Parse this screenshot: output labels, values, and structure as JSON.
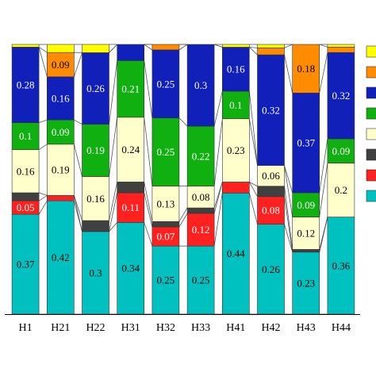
{
  "chart_data": {
    "type": "bar",
    "stacked": true,
    "normalized": true,
    "categories": [
      "H1",
      "H21",
      "H22",
      "H31",
      "H32",
      "H33",
      "H41",
      "H42",
      "H43",
      "H44"
    ],
    "ylim": [
      0,
      1
    ],
    "legend_position": "right (partially cropped)",
    "connector_lines_between_bars": true,
    "series": [
      {
        "color": "#00c0c0",
        "label_color": "#000000",
        "values": [
          0.37,
          0.42,
          0.3,
          0.34,
          0.25,
          0.25,
          0.44,
          0.26,
          0.23,
          0.36
        ],
        "labels": [
          "0.37",
          "0.42",
          "0.3",
          "0.34",
          "0.25",
          "0.25",
          "0.44",
          "0.26",
          "0.23",
          "0.36"
        ]
      },
      {
        "color": "#ff2020",
        "label_color": "#ffffff",
        "values": [
          0.05,
          0.02,
          0.0,
          0.11,
          0.07,
          0.12,
          0.04,
          0.08,
          0.0,
          0.0
        ],
        "labels": [
          "0.05",
          "",
          "",
          "0.11",
          "0.07",
          "0.12",
          "",
          "0.08",
          "",
          ""
        ]
      },
      {
        "color": "#404040",
        "label_color": "#ffffff",
        "values": [
          0.03,
          0.0,
          0.04,
          0.04,
          0.02,
          0.02,
          0.0,
          0.03,
          0.01,
          0.0
        ],
        "labels": [
          "",
          "",
          "",
          "",
          "",
          "",
          "",
          "",
          "",
          ""
        ]
      },
      {
        "color": "#ffffcc",
        "label_color": "#000000",
        "values": [
          0.16,
          0.19,
          0.16,
          0.24,
          0.13,
          0.08,
          0.23,
          0.06,
          0.12,
          0.2
        ],
        "labels": [
          "0.16",
          "0.19",
          "0.16",
          "0.24",
          "0.13",
          "0.08",
          "0.23",
          "0.06",
          "0.12",
          "0.2"
        ]
      },
      {
        "color": "#10b010",
        "label_color": "#ffffff",
        "values": [
          0.1,
          0.09,
          0.19,
          0.21,
          0.25,
          0.22,
          0.1,
          0.0,
          0.09,
          0.09
        ],
        "labels": [
          "0.1",
          "0.09",
          "0.19",
          "0.21",
          "0.25",
          "0.22",
          "0.1",
          "",
          "0.09",
          "0.09"
        ]
      },
      {
        "color": "#1020b8",
        "label_color": "#ffffff",
        "values": [
          0.28,
          0.16,
          0.26,
          0.06,
          0.25,
          0.3,
          0.16,
          0.32,
          0.37,
          0.32
        ],
        "labels": [
          "0.28",
          "0.16",
          "0.26",
          "",
          "0.25",
          "0.3",
          "0.16",
          "0.32",
          "0.37",
          "0.32"
        ]
      },
      {
        "color": "#ff8c00",
        "label_color": "#000000",
        "values": [
          0.0,
          0.09,
          0.0,
          0.0,
          0.02,
          0.0,
          0.0,
          0.02,
          0.18,
          0.02
        ],
        "labels": [
          "",
          "0.09",
          "",
          "",
          "",
          "",
          "",
          "",
          "0.18",
          ""
        ]
      },
      {
        "color": "#ffff00",
        "label_color": "#000000",
        "values": [
          0.01,
          0.03,
          0.03,
          0.0,
          0.0,
          0.0,
          0.01,
          0.01,
          0.0,
          0.01
        ],
        "labels": [
          "",
          "",
          "",
          "",
          "",
          "",
          "",
          "",
          "",
          ""
        ]
      }
    ],
    "legend_swatches": [
      "#ffff00",
      "#ff8c00",
      "#1020b8",
      "#10b010",
      "#ffffcc",
      "#404040",
      "#ff2020",
      "#00c0c0"
    ]
  }
}
